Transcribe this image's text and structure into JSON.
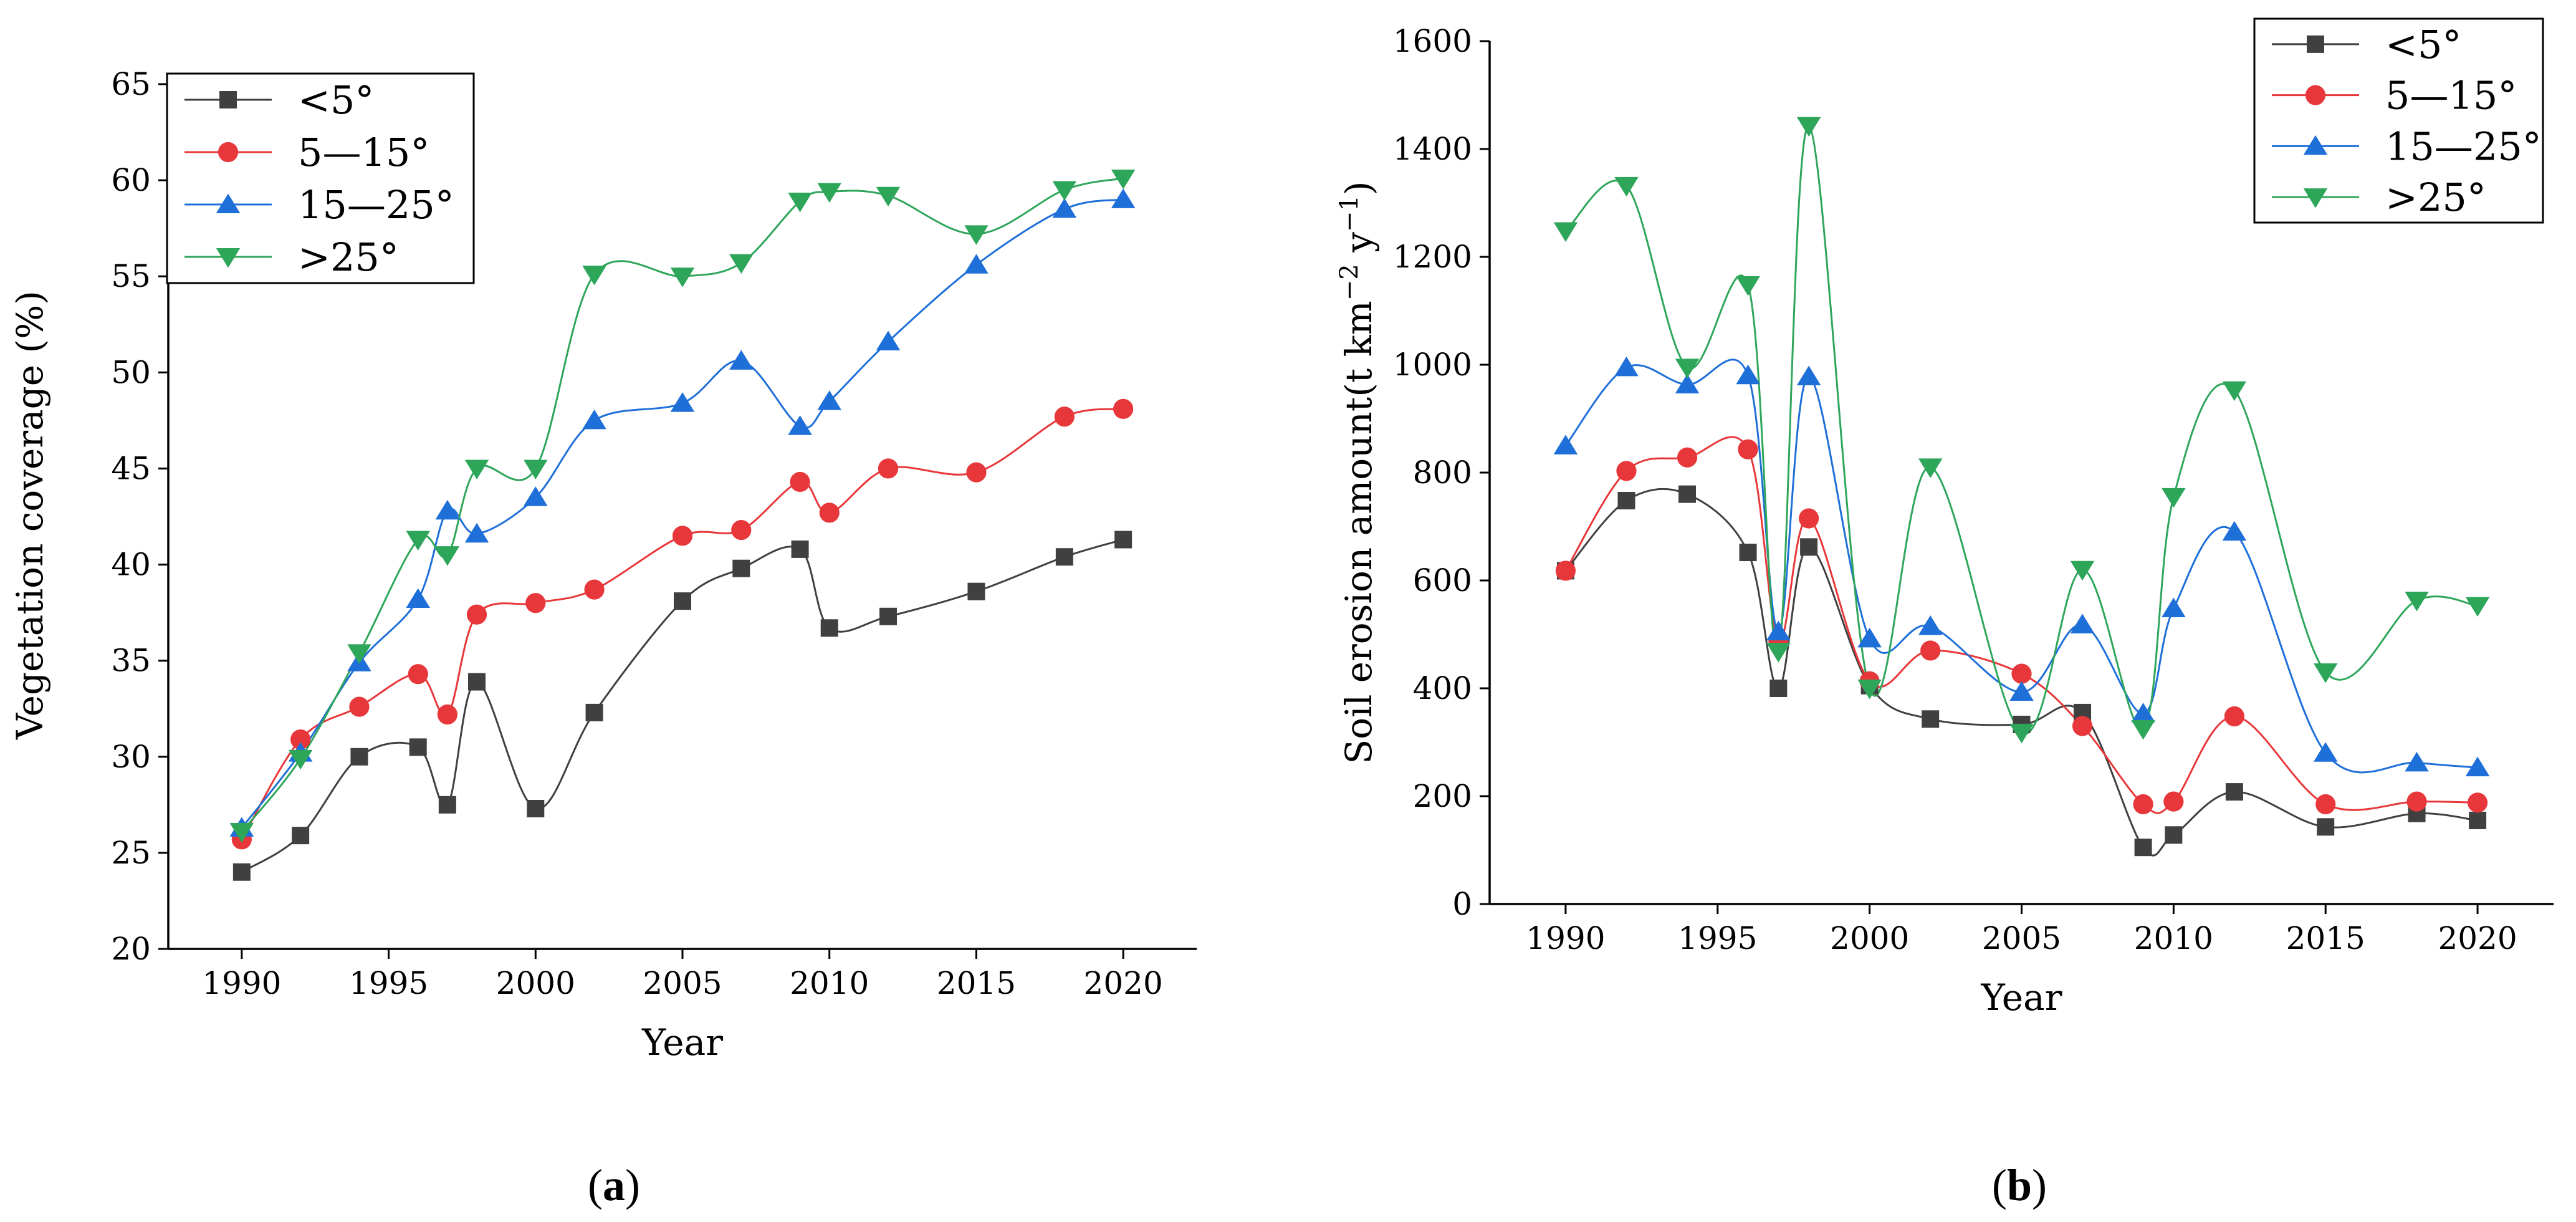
{
  "chart_data": [
    {
      "panel_label": "(a)",
      "type": "line",
      "xlabel": "Year",
      "ylabel": "Vegetation coverage (%)",
      "xlim": [
        1987.5,
        2022.5
      ],
      "ylim": [
        20,
        65
      ],
      "xticks": [
        1990,
        1995,
        2000,
        2005,
        2010,
        2015,
        2020
      ],
      "yticks": [
        20,
        25,
        30,
        35,
        40,
        45,
        50,
        55,
        60,
        65
      ],
      "legend_position": "top-left",
      "x": [
        1990,
        1992,
        1994,
        1996,
        1997,
        1998,
        2000,
        2002,
        2005,
        2007,
        2009,
        2010,
        2012,
        2015,
        2018,
        2020
      ],
      "series": [
        {
          "name": "<5°",
          "color": "#404040",
          "marker": "square",
          "values": [
            24.0,
            25.9,
            30.0,
            30.5,
            27.5,
            33.9,
            27.3,
            32.3,
            38.1,
            39.8,
            40.8,
            36.7,
            37.3,
            38.6,
            40.4,
            41.3
          ]
        },
        {
          "name": "5—15°",
          "color": "#e8373a",
          "marker": "circle",
          "values": [
            25.7,
            30.9,
            32.6,
            34.3,
            32.2,
            37.4,
            38.0,
            38.7,
            41.5,
            41.8,
            44.3,
            42.7,
            45.0,
            44.8,
            47.7,
            48.1
          ]
        },
        {
          "name": "15—25°",
          "color": "#1f6fd9",
          "marker": "triangle-up",
          "values": [
            26.3,
            30.2,
            34.9,
            38.2,
            42.8,
            41.6,
            43.5,
            47.5,
            48.4,
            50.6,
            47.2,
            48.5,
            51.6,
            55.6,
            58.5,
            59.0
          ]
        },
        {
          "name": ">25°",
          "color": "#2ea65a",
          "marker": "triangle-down",
          "values": [
            26.1,
            29.9,
            35.4,
            41.3,
            40.5,
            45.0,
            45.0,
            55.1,
            55.0,
            55.7,
            58.9,
            59.4,
            59.2,
            57.2,
            59.5,
            60.1
          ]
        }
      ]
    },
    {
      "panel_label": "(b)",
      "type": "line",
      "xlabel": "Year",
      "ylabel": "Soil erosion amount(t km",
      "ylabel_sup1": "−2",
      "ylabel_mid": " y",
      "ylabel_sup2": "−1",
      "ylabel_end": ")",
      "xlim": [
        1987.5,
        2022.5
      ],
      "ylim": [
        0,
        1600
      ],
      "xticks": [
        1990,
        1995,
        2000,
        2005,
        2010,
        2015,
        2020
      ],
      "yticks": [
        0,
        200,
        400,
        600,
        800,
        1000,
        1200,
        1400,
        1600
      ],
      "legend_position": "top-right",
      "x": [
        1990,
        1992,
        1994,
        1996,
        1997,
        1998,
        2000,
        2002,
        2005,
        2007,
        2009,
        2010,
        2012,
        2015,
        2018,
        2020
      ],
      "series": [
        {
          "name": "<5°",
          "color": "#404040",
          "marker": "square",
          "values": [
            618,
            748,
            760,
            652,
            400,
            662,
            405,
            343,
            333,
            355,
            105,
            128,
            208,
            143,
            168,
            155
          ]
        },
        {
          "name": "5—15°",
          "color": "#e8373a",
          "marker": "circle",
          "values": [
            618,
            803,
            828,
            843,
            488,
            715,
            413,
            470,
            427,
            330,
            185,
            190,
            348,
            185,
            190,
            188
          ]
        },
        {
          "name": "15—25°",
          "color": "#1f6fd9",
          "marker": "triangle-up",
          "values": [
            850,
            995,
            963,
            980,
            505,
            978,
            492,
            515,
            393,
            518,
            353,
            548,
            690,
            280,
            262,
            253
          ]
        },
        {
          "name": ">25°",
          "color": "#2ea65a",
          "marker": "triangle-down",
          "values": [
            1248,
            1332,
            995,
            1148,
            468,
            1443,
            400,
            810,
            318,
            620,
            325,
            755,
            953,
            430,
            563,
            553
          ]
        }
      ]
    }
  ]
}
